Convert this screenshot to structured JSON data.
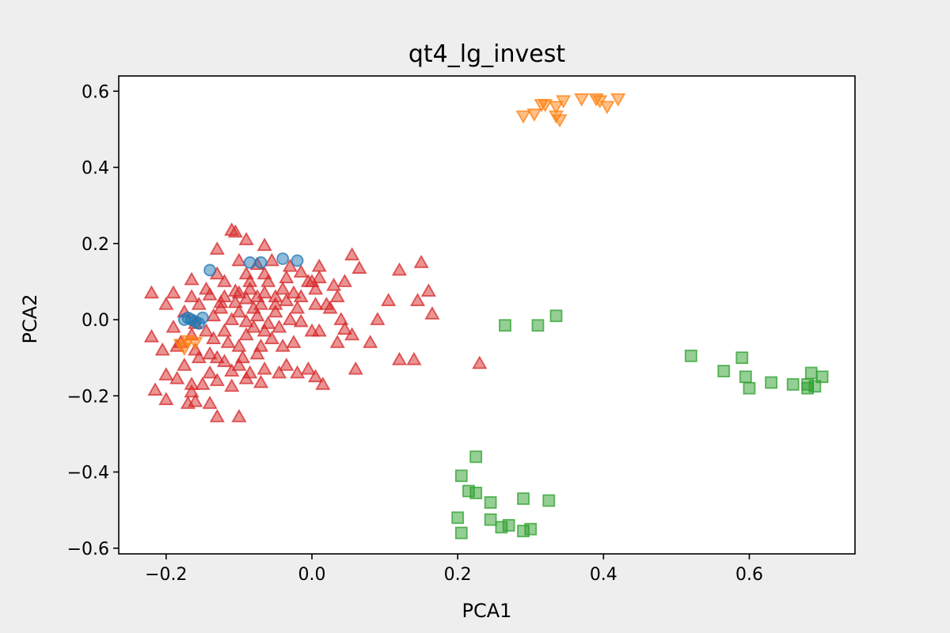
{
  "chart_data": {
    "type": "scatter",
    "title": "qt4_lg_invest",
    "xlabel": "PCA1",
    "ylabel": "PCA2",
    "xlim": [
      -0.265,
      0.745
    ],
    "ylim": [
      -0.615,
      0.64
    ],
    "xticks": [
      -0.2,
      0.0,
      0.2,
      0.4,
      0.6
    ],
    "xtick_labels": [
      "−0.2",
      "0.0",
      "0.2",
      "0.4",
      "0.6"
    ],
    "yticks": [
      -0.6,
      -0.4,
      -0.2,
      0.0,
      0.2,
      0.4,
      0.6
    ],
    "ytick_labels": [
      "−0.6",
      "−0.4",
      "−0.2",
      "0.0",
      "0.2",
      "0.4",
      "0.6"
    ],
    "grid": false,
    "legend": false,
    "series": [
      {
        "marker": "triangle-up",
        "color": "#d62728",
        "points": [
          [
            -0.22,
            0.07
          ],
          [
            -0.19,
            0.07
          ],
          [
            -0.165,
            0.105
          ],
          [
            -0.13,
            0.12
          ],
          [
            -0.13,
            0.185
          ],
          [
            -0.11,
            0.235
          ],
          [
            -0.105,
            0.23
          ],
          [
            -0.09,
            0.21
          ],
          [
            -0.065,
            0.195
          ],
          [
            -0.1,
            0.155
          ],
          [
            -0.075,
            0.145
          ],
          [
            -0.055,
            0.155
          ],
          [
            -0.03,
            0.14
          ],
          [
            -0.015,
            0.125
          ],
          [
            0.01,
            0.14
          ],
          [
            -0.005,
            0.1
          ],
          [
            -0.035,
            0.11
          ],
          [
            -0.065,
            0.12
          ],
          [
            -0.09,
            0.12
          ],
          [
            -0.12,
            0.1
          ],
          [
            -0.145,
            0.08
          ],
          [
            -0.165,
            0.06
          ],
          [
            -0.12,
            0.06
          ],
          [
            -0.105,
            0.045
          ],
          [
            -0.1,
            0.07
          ],
          [
            -0.085,
            0.08
          ],
          [
            -0.075,
            0.06
          ],
          [
            -0.065,
            0.07
          ],
          [
            -0.05,
            0.06
          ],
          [
            -0.035,
            0.05
          ],
          [
            -0.015,
            0.06
          ],
          [
            0.005,
            0.08
          ],
          [
            0.03,
            0.09
          ],
          [
            0.035,
            0.06
          ],
          [
            0.045,
            0.1
          ],
          [
            0.055,
            0.17
          ],
          [
            0.065,
            0.135
          ],
          [
            0.12,
            0.13
          ],
          [
            0.15,
            0.15
          ],
          [
            0.16,
            0.075
          ],
          [
            0.145,
            0.05
          ],
          [
            0.165,
            0.015
          ],
          [
            0.105,
            0.05
          ],
          [
            0.09,
            0.0
          ],
          [
            -0.2,
            0.04
          ],
          [
            -0.175,
            0.02
          ],
          [
            -0.155,
            0.04
          ],
          [
            -0.135,
            0.01
          ],
          [
            -0.125,
            0.03
          ],
          [
            -0.11,
            0.0
          ],
          [
            -0.1,
            0.02
          ],
          [
            -0.09,
            -0.005
          ],
          [
            -0.075,
            0.01
          ],
          [
            -0.06,
            -0.01
          ],
          [
            -0.05,
            0.02
          ],
          [
            -0.045,
            -0.02
          ],
          [
            -0.03,
            0.0
          ],
          [
            -0.015,
            -0.005
          ],
          [
            0.005,
            0.04
          ],
          [
            0.02,
            0.04
          ],
          [
            0.04,
            0.0
          ],
          [
            0.01,
            -0.03
          ],
          [
            -0.025,
            -0.06
          ],
          [
            -0.055,
            -0.05
          ],
          [
            -0.09,
            -0.04
          ],
          [
            -0.12,
            -0.03
          ],
          [
            -0.145,
            -0.03
          ],
          [
            -0.165,
            -0.04
          ],
          [
            -0.19,
            -0.02
          ],
          [
            -0.22,
            -0.045
          ],
          [
            -0.205,
            -0.08
          ],
          [
            -0.185,
            -0.07
          ],
          [
            -0.16,
            -0.08
          ],
          [
            -0.14,
            -0.09
          ],
          [
            -0.12,
            -0.11
          ],
          [
            -0.1,
            -0.12
          ],
          [
            -0.085,
            -0.14
          ],
          [
            -0.065,
            -0.13
          ],
          [
            -0.045,
            -0.14
          ],
          [
            -0.02,
            -0.14
          ],
          [
            -0.005,
            -0.13
          ],
          [
            0.005,
            -0.15
          ],
          [
            0.015,
            -0.17
          ],
          [
            -0.035,
            -0.12
          ],
          [
            -0.07,
            -0.165
          ],
          [
            -0.09,
            -0.155
          ],
          [
            -0.11,
            -0.175
          ],
          [
            -0.13,
            -0.16
          ],
          [
            -0.15,
            -0.17
          ],
          [
            -0.165,
            -0.19
          ],
          [
            -0.185,
            -0.155
          ],
          [
            -0.2,
            -0.145
          ],
          [
            -0.215,
            -0.185
          ],
          [
            -0.2,
            -0.21
          ],
          [
            -0.17,
            -0.22
          ],
          [
            -0.16,
            -0.215
          ],
          [
            -0.14,
            -0.22
          ],
          [
            -0.13,
            -0.255
          ],
          [
            -0.1,
            -0.255
          ],
          [
            -0.165,
            -0.17
          ],
          [
            -0.13,
            -0.1
          ],
          [
            -0.11,
            -0.135
          ],
          [
            -0.095,
            -0.1
          ],
          [
            -0.075,
            -0.09
          ],
          [
            -0.07,
            -0.07
          ],
          [
            -0.08,
            0.03
          ],
          [
            -0.07,
            0.04
          ],
          [
            -0.04,
            -0.07
          ],
          [
            0.035,
            -0.06
          ],
          [
            0.055,
            -0.04
          ],
          [
            0.08,
            -0.06
          ],
          [
            0.12,
            -0.105
          ],
          [
            0.14,
            -0.105
          ],
          [
            0.23,
            -0.115
          ],
          [
            0.06,
            -0.13
          ],
          [
            0.045,
            -0.025
          ],
          [
            0.0,
            -0.03
          ],
          [
            -0.02,
            0.03
          ],
          [
            -0.085,
            0.1
          ],
          [
            -0.06,
            0.1
          ],
          [
            -0.05,
            0.04
          ],
          [
            -0.14,
            0.065
          ],
          [
            -0.16,
            -0.01
          ],
          [
            -0.18,
            -0.06
          ],
          [
            -0.14,
            -0.14
          ],
          [
            -0.175,
            -0.12
          ],
          [
            -0.125,
            0.045
          ],
          [
            -0.105,
            0.075
          ],
          [
            -0.09,
            0.055
          ],
          [
            -0.08,
            -0.02
          ],
          [
            -0.065,
            -0.03
          ],
          [
            -0.04,
            0.08
          ],
          [
            -0.025,
            0.07
          ],
          [
            0.0,
            0.1
          ],
          [
            0.01,
            0.11
          ],
          [
            0.025,
            0.03
          ],
          [
            -0.115,
            -0.06
          ],
          [
            -0.135,
            -0.05
          ],
          [
            -0.1,
            -0.07
          ],
          [
            -0.155,
            -0.1
          ]
        ]
      },
      {
        "marker": "circle",
        "color": "#1f77b4",
        "points": [
          [
            -0.14,
            0.13
          ],
          [
            -0.085,
            0.15
          ],
          [
            -0.07,
            0.15
          ],
          [
            -0.04,
            0.16
          ],
          [
            -0.02,
            0.155
          ],
          [
            -0.175,
            0.0
          ],
          [
            -0.16,
            -0.005
          ],
          [
            -0.165,
            0.0
          ],
          [
            -0.15,
            0.005
          ],
          [
            -0.155,
            -0.01
          ],
          [
            -0.17,
            0.005
          ]
        ]
      },
      {
        "marker": "triangle-down",
        "color": "#ff7f0e",
        "points": [
          [
            0.29,
            0.535
          ],
          [
            0.305,
            0.54
          ],
          [
            0.315,
            0.565
          ],
          [
            0.32,
            0.565
          ],
          [
            0.335,
            0.535
          ],
          [
            0.34,
            0.525
          ],
          [
            0.335,
            0.56
          ],
          [
            0.345,
            0.575
          ],
          [
            0.37,
            0.58
          ],
          [
            0.39,
            0.58
          ],
          [
            0.395,
            0.575
          ],
          [
            0.405,
            0.56
          ],
          [
            0.42,
            0.58
          ],
          [
            -0.18,
            -0.065
          ],
          [
            -0.175,
            -0.075
          ],
          [
            -0.17,
            -0.055
          ],
          [
            -0.16,
            -0.06
          ]
        ]
      },
      {
        "marker": "square",
        "color": "#2ca02c",
        "points": [
          [
            0.265,
            -0.015
          ],
          [
            0.31,
            -0.015
          ],
          [
            0.335,
            0.01
          ],
          [
            0.52,
            -0.095
          ],
          [
            0.565,
            -0.135
          ],
          [
            0.59,
            -0.1
          ],
          [
            0.595,
            -0.15
          ],
          [
            0.6,
            -0.18
          ],
          [
            0.63,
            -0.165
          ],
          [
            0.66,
            -0.17
          ],
          [
            0.68,
            -0.17
          ],
          [
            0.68,
            -0.18
          ],
          [
            0.685,
            -0.14
          ],
          [
            0.69,
            -0.175
          ],
          [
            0.7,
            -0.15
          ],
          [
            0.225,
            -0.36
          ],
          [
            0.205,
            -0.41
          ],
          [
            0.215,
            -0.45
          ],
          [
            0.225,
            -0.455
          ],
          [
            0.245,
            -0.48
          ],
          [
            0.29,
            -0.47
          ],
          [
            0.325,
            -0.475
          ],
          [
            0.2,
            -0.52
          ],
          [
            0.205,
            -0.56
          ],
          [
            0.245,
            -0.525
          ],
          [
            0.26,
            -0.545
          ],
          [
            0.27,
            -0.54
          ],
          [
            0.29,
            -0.555
          ],
          [
            0.3,
            -0.55
          ]
        ]
      }
    ]
  }
}
